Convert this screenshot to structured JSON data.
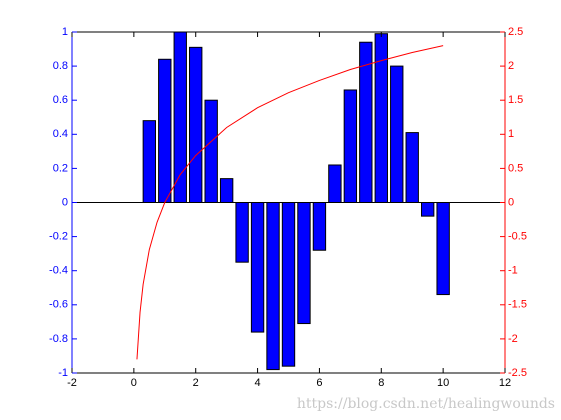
{
  "chart_data": {
    "type": "bar",
    "xlim": [
      -2,
      12
    ],
    "xticks": [
      -2,
      0,
      2,
      4,
      6,
      8,
      10,
      12
    ],
    "ylim": [
      -1,
      1
    ],
    "yticks": [
      -1,
      -0.8,
      -0.6,
      -0.4,
      -0.2,
      0,
      0.2,
      0.4,
      0.6,
      0.8,
      1
    ],
    "y2lim": [
      -2.5,
      2.5
    ],
    "y2ticks": [
      -2.5,
      -2,
      -1.5,
      -1,
      -0.5,
      0,
      0.5,
      1,
      1.5,
      2,
      2.5
    ],
    "y_color": "#0000ff",
    "y2_color": "#ff0000",
    "series": [
      {
        "type": "bar",
        "color": "#0000ff",
        "x": [
          0.5,
          1,
          1.5,
          2,
          2.5,
          3,
          3.5,
          4,
          4.5,
          5,
          5.5,
          6,
          6.5,
          7,
          7.5,
          8,
          8.5,
          9,
          9.5,
          10
        ],
        "values": [
          0.48,
          0.84,
          1.0,
          0.91,
          0.6,
          0.14,
          -0.35,
          -0.76,
          -0.98,
          -0.96,
          -0.71,
          -0.28,
          0.22,
          0.66,
          0.94,
          0.99,
          0.8,
          0.41,
          -0.08,
          -0.54
        ]
      },
      {
        "type": "line",
        "axis": "y2",
        "color": "#ff0000",
        "x": [
          0.1,
          0.2,
          0.3,
          0.5,
          0.75,
          1,
          1.5,
          2,
          3,
          4,
          5,
          6,
          7,
          8,
          9,
          10
        ],
        "values": [
          -2.3,
          -1.61,
          -1.2,
          -0.69,
          -0.29,
          0,
          0.41,
          0.69,
          1.1,
          1.39,
          1.61,
          1.79,
          1.95,
          2.08,
          2.2,
          2.3
        ]
      }
    ],
    "watermark": "https://blog.csdn.net/healingwounds"
  }
}
